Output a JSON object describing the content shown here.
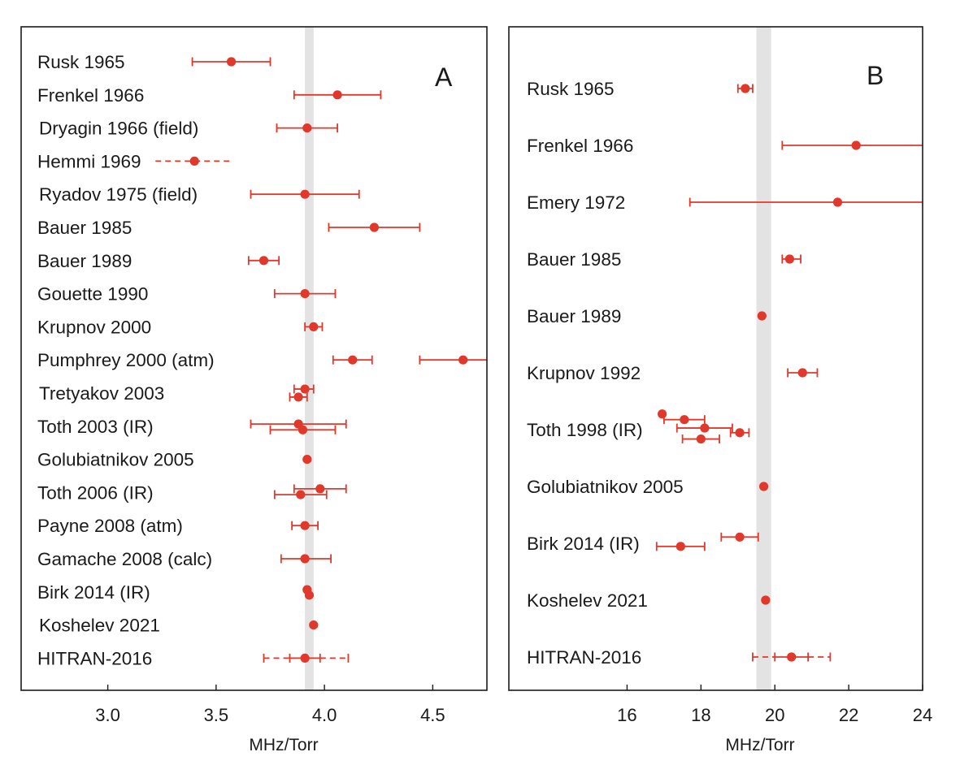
{
  "colors": {
    "marker": "#e0382b",
    "band": "#e3e3e3",
    "axis": "#1a1a1a"
  },
  "chart_data": [
    {
      "type": "scatter",
      "panel_label": "A",
      "xlabel": "MHz/Torr",
      "xlim": [
        2.6,
        4.75
      ],
      "xticks": [
        3.0,
        3.5,
        4.0,
        4.5
      ],
      "xtick_labels": [
        "3.0",
        "3.5",
        "4.0",
        "4.5"
      ],
      "reference_band": [
        3.91,
        3.95
      ],
      "grid": false,
      "categories": [
        "Rusk 1965",
        "Frenkel 1966",
        "Dryagin 1966 (field)",
        "Hemmi 1969",
        "Ryadov 1975 (field)",
        "Bauer 1985",
        "Bauer 1989",
        "Gouette 1990",
        "Krupnov 2000",
        "Pumphrey 2000 (atm)",
        "Tretyakov 2003",
        "Toth 2003 (IR)",
        "Golubiatnikov 2005",
        "Toth 2006 (IR)",
        "Payne 2008 (atm)",
        "Gamache 2008 (calc)",
        "Birk 2014 (IR)",
        "Koshelev 2021",
        "HITRAN-2016"
      ],
      "points": [
        {
          "cat": 0,
          "x": 3.57,
          "lo": 3.39,
          "hi": 3.75
        },
        {
          "cat": 1,
          "x": 4.06,
          "lo": 3.86,
          "hi": 4.26
        },
        {
          "cat": 2,
          "x": 3.92,
          "lo": 3.78,
          "hi": 4.06
        },
        {
          "cat": 3,
          "x": 3.4,
          "lo": 3.22,
          "hi": 3.58,
          "dashed": true
        },
        {
          "cat": 4,
          "x": 3.91,
          "lo": 3.66,
          "hi": 4.16
        },
        {
          "cat": 5,
          "x": 4.23,
          "lo": 4.02,
          "hi": 4.44
        },
        {
          "cat": 6,
          "x": 3.72,
          "lo": 3.65,
          "hi": 3.79
        },
        {
          "cat": 7,
          "x": 3.91,
          "lo": 3.77,
          "hi": 4.05
        },
        {
          "cat": 8,
          "x": 3.95,
          "lo": 3.91,
          "hi": 3.99
        },
        {
          "cat": 9,
          "x": 4.13,
          "lo": 4.04,
          "hi": 4.22
        },
        {
          "cat": 9,
          "x": 4.64,
          "lo": 4.44,
          "hi": 4.75,
          "cap_hi": false
        },
        {
          "cat": 10,
          "x": 3.91,
          "lo": 3.86,
          "hi": 3.95,
          "dy": -0.22
        },
        {
          "cat": 10,
          "x": 3.88,
          "lo": 3.84,
          "hi": 3.92,
          "dy": 0.22
        },
        {
          "cat": 11,
          "x": 3.88,
          "lo": 3.66,
          "hi": 4.1,
          "dy": -0.12
        },
        {
          "cat": 11,
          "x": 3.9,
          "lo": 3.75,
          "hi": 4.05,
          "dy": 0.2
        },
        {
          "cat": 12,
          "x": 3.92
        },
        {
          "cat": 13,
          "x": 3.98,
          "lo": 3.86,
          "hi": 4.1,
          "dy": -0.2
        },
        {
          "cat": 13,
          "x": 3.89,
          "lo": 3.77,
          "hi": 4.01,
          "dy": 0.12
        },
        {
          "cat": 14,
          "x": 3.91,
          "lo": 3.85,
          "hi": 3.97
        },
        {
          "cat": 15,
          "x": 3.91,
          "lo": 3.8,
          "hi": 4.03
        },
        {
          "cat": 16,
          "x": 3.92,
          "dy": -0.12
        },
        {
          "cat": 16,
          "x": 3.93,
          "dy": 0.18
        },
        {
          "cat": 17,
          "x": 3.95
        },
        {
          "cat": 18,
          "x": 3.91,
          "lo": 3.72,
          "hi": 4.11,
          "dashed": true,
          "inner_lo": 3.84,
          "inner_hi": 3.98
        }
      ]
    },
    {
      "type": "scatter",
      "panel_label": "B",
      "xlabel": "MHz/Torr",
      "xlim": [
        12.8,
        24
      ],
      "xticks": [
        16,
        18,
        20,
        22,
        24
      ],
      "xtick_labels": [
        "16",
        "18",
        "20",
        "22",
        "24"
      ],
      "reference_band": [
        19.5,
        19.9
      ],
      "grid": false,
      "categories": [
        "Rusk 1965",
        "Frenkel 1966",
        "Emery 1972",
        "Bauer 1985",
        "Bauer 1989",
        "Krupnov 1992",
        "Toth 1998 (IR)",
        "Golubiatnikov 2005",
        "Birk 2014 (IR)",
        "Koshelev 2021",
        "HITRAN-2016"
      ],
      "points": [
        {
          "cat": 0,
          "x": 19.2,
          "lo": 19.0,
          "hi": 19.4
        },
        {
          "cat": 1,
          "x": 22.2,
          "lo": 20.2,
          "hi": 24.0,
          "cap_hi": false
        },
        {
          "cat": 2,
          "x": 21.7,
          "lo": 17.7,
          "hi": 24.0,
          "cap_hi": false
        },
        {
          "cat": 3,
          "x": 20.4,
          "lo": 20.2,
          "hi": 20.7
        },
        {
          "cat": 4,
          "x": 19.65
        },
        {
          "cat": 5,
          "x": 20.75,
          "lo": 20.35,
          "hi": 21.15
        },
        {
          "cat": 6,
          "x": 16.95,
          "dy": -0.5
        },
        {
          "cat": 6,
          "x": 17.55,
          "lo": 17.0,
          "hi": 18.1,
          "dy": -0.32
        },
        {
          "cat": 6,
          "x": 18.1,
          "lo": 17.35,
          "hi": 18.85,
          "dy": -0.05
        },
        {
          "cat": 6,
          "x": 19.05,
          "lo": 18.8,
          "hi": 19.3,
          "dy": 0.1
        },
        {
          "cat": 6,
          "x": 18.0,
          "lo": 17.5,
          "hi": 18.5,
          "dy": 0.3
        },
        {
          "cat": 7,
          "x": 19.7
        },
        {
          "cat": 8,
          "x": 19.05,
          "lo": 18.55,
          "hi": 19.55,
          "dy": -0.2
        },
        {
          "cat": 8,
          "x": 17.45,
          "lo": 16.8,
          "hi": 18.1,
          "dy": 0.1
        },
        {
          "cat": 9,
          "x": 19.75
        },
        {
          "cat": 10,
          "x": 20.45,
          "lo": 19.4,
          "hi": 21.5,
          "dashed": true,
          "inner_lo": 20.0,
          "inner_hi": 20.9
        }
      ]
    }
  ]
}
